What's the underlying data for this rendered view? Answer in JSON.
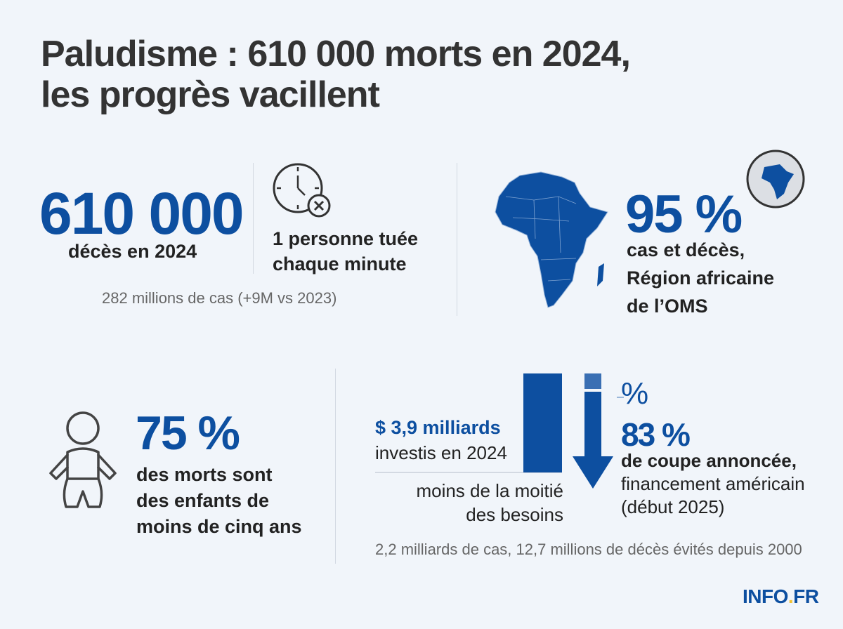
{
  "title_line1": "Paludisme : 610 000 morts en 2024,",
  "title_line2": "les progrès vacillent",
  "deaths": {
    "value": "610 000",
    "label": "décès en 2024",
    "cases_note": "282 millions de cas (+9M vs 2023)"
  },
  "clock": {
    "icon": "clock-with-x-icon",
    "line1": "1 personne tuée",
    "line2": "chaque minute"
  },
  "africa": {
    "value": "95 %",
    "line1": "cas et décès,",
    "line2": "Région africaine",
    "line3": "de l’OMS",
    "icons": [
      "africa-map-icon",
      "globe-icon"
    ]
  },
  "children": {
    "value": "75 %",
    "line1": "des morts sont",
    "line2": "des enfants de",
    "line3": "moins de cinq ans",
    "icon": "baby-icon"
  },
  "funding": {
    "amount": "$ 3,9 milliards",
    "amount_label": "investis en 2024",
    "needs_line1": "moins de la moitié",
    "needs_line2": "des besoins",
    "cut_symbol": "%",
    "cut_value": "83 %",
    "cut_line1": "de coupe annoncée,",
    "cut_line2": "financement américain",
    "cut_line3": "(début 2025)",
    "footnote": "2,2 milliards de cas, 12,7 millions de décès évités depuis 2000"
  },
  "logo": {
    "text_main": "INFO",
    "text_dot": ".",
    "text_tld": "FR"
  },
  "colors": {
    "accent": "#0d4fa0",
    "logo_dot": "#f2c230",
    "text": "#222222"
  }
}
